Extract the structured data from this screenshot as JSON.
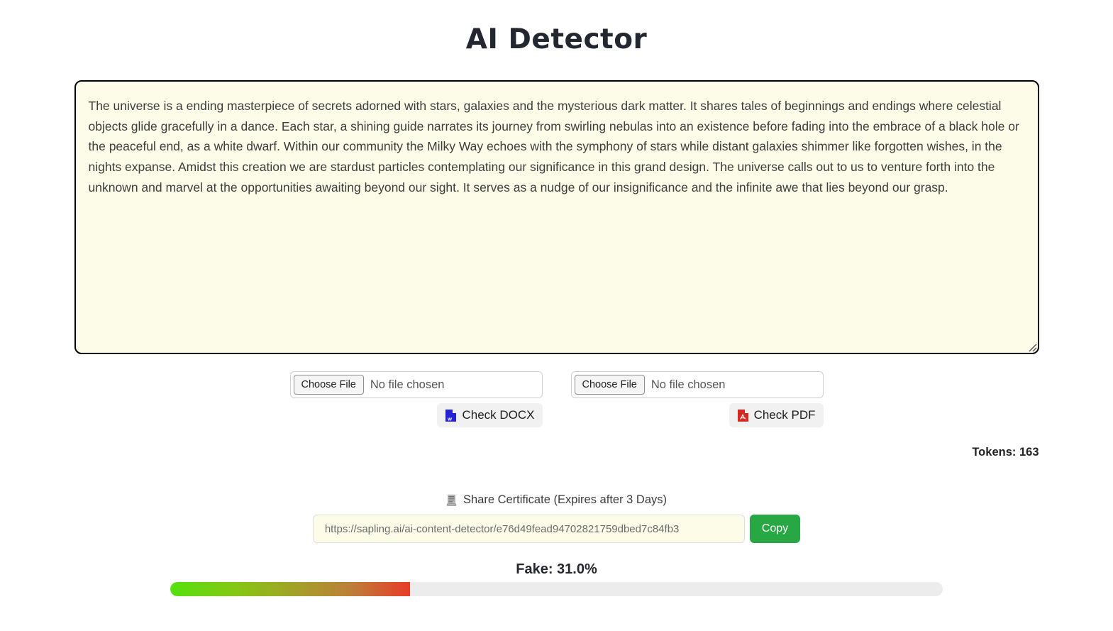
{
  "page": {
    "title": "AI Detector"
  },
  "detector": {
    "input_text": "The universe is a ending masterpiece of secrets adorned with stars, galaxies and the mysterious dark matter. It shares tales of beginnings and endings where celestial objects glide gracefully in a dance. Each star, a shining guide narrates its journey from swirling nebulas into an existence before fading into the embrace of a black hole or the peaceful end, as a white dwarf. Within our community the Milky Way echoes with the symphony of stars while distant galaxies shimmer like forgotten wishes, in the nights expanse. Amidst this creation we are stardust particles contemplating our significance in this grand design. The universe calls out to us to venture forth into the unknown and marvel at the opportunities awaiting beyond our sight. It serves as a nudge of our insignificance and the infinite awe that lies beyond our grasp.",
    "tokens_label": "Tokens:",
    "tokens_value": "163"
  },
  "upload": {
    "docx": {
      "choose_file_label": "Choose File",
      "no_file_text": "No file chosen",
      "check_label": "Check DOCX",
      "icon": "word-file-icon"
    },
    "pdf": {
      "choose_file_label": "Choose File",
      "no_file_text": "No file chosen",
      "check_label": "Check PDF",
      "icon": "pdf-file-icon"
    }
  },
  "share": {
    "heading": "Share Certificate (Expires after 3 Days)",
    "icon": "scroll-certificate-icon",
    "url": "https://sapling.ai/ai-content-detector/e76d49fead94702821759dbed7c84fb3",
    "copy_label": "Copy"
  },
  "result": {
    "fake_label": "Fake: 31.0%",
    "fake_percent": 31.0
  },
  "colors": {
    "copy_button_green": "#28a745",
    "textarea_background": "#fdfce8",
    "textarea_border": "#000000",
    "gauge_track": "#ececec",
    "gauge_gradient_start": "#55e00d",
    "gauge_gradient_mid": "#a3a127",
    "gauge_gradient_end": "#e83d28",
    "word_icon_blue": "#2323d6",
    "pdf_icon_red": "#d6281e"
  }
}
